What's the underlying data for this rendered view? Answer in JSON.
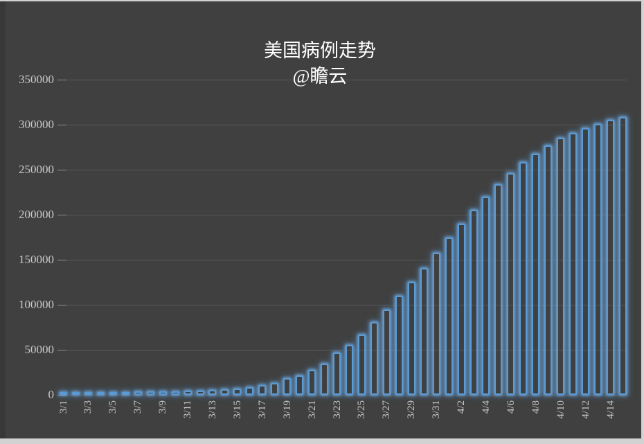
{
  "title": "美国病例走势",
  "subtitle": "@瞻云",
  "colors": {
    "background": "#404040",
    "frame": "#d2d2d2",
    "bar_stroke": "#5b9bd5",
    "bar_glow": "rgba(91,155,213,0.45)",
    "gridline": "#585858",
    "tick": "#8f8f8f",
    "axis_label_text": "#c9c9c9",
    "title_text": "#ffffff"
  },
  "chart_data": {
    "type": "bar",
    "title": "美国病例走势",
    "subtitle": "@瞻云",
    "bar_style": "hollow-outline-with-glow",
    "legend": false,
    "grid": "horizontal",
    "xlabel": "",
    "ylabel": "",
    "ylim": [
      0,
      350000
    ],
    "y_ticks": [
      0,
      50000,
      100000,
      150000,
      200000,
      250000,
      300000,
      350000
    ],
    "x_label_every": 2,
    "x_label_rotation_deg": 90,
    "categories": [
      "3/1",
      "3/2",
      "3/3",
      "3/4",
      "3/5",
      "3/6",
      "3/7",
      "3/8",
      "3/9",
      "3/10",
      "3/11",
      "3/12",
      "3/13",
      "3/14",
      "3/15",
      "3/16",
      "3/17",
      "3/18",
      "3/19",
      "3/20",
      "3/21",
      "3/22",
      "3/23",
      "3/24",
      "3/25",
      "3/26",
      "3/27",
      "3/28",
      "3/29",
      "3/30",
      "3/31",
      "4/1",
      "4/2",
      "4/3",
      "4/4",
      "4/5",
      "4/6",
      "4/7",
      "4/8",
      "4/9",
      "4/10",
      "4/11",
      "4/12",
      "4/13",
      "4/14",
      "4/15"
    ],
    "values": [
      89,
      105,
      125,
      160,
      230,
      340,
      440,
      550,
      750,
      1030,
      1310,
      1700,
      2200,
      2950,
      4000,
      5200,
      7700,
      9800,
      15400,
      18500,
      24400,
      31300,
      44100,
      52400,
      64100,
      77700,
      91500,
      107200,
      122300,
      138000,
      154600,
      171300,
      187100,
      202500,
      217100,
      230800,
      243100,
      255100,
      264600,
      273800,
      282100,
      287700,
      292800,
      297900,
      302000,
      305100
    ]
  }
}
